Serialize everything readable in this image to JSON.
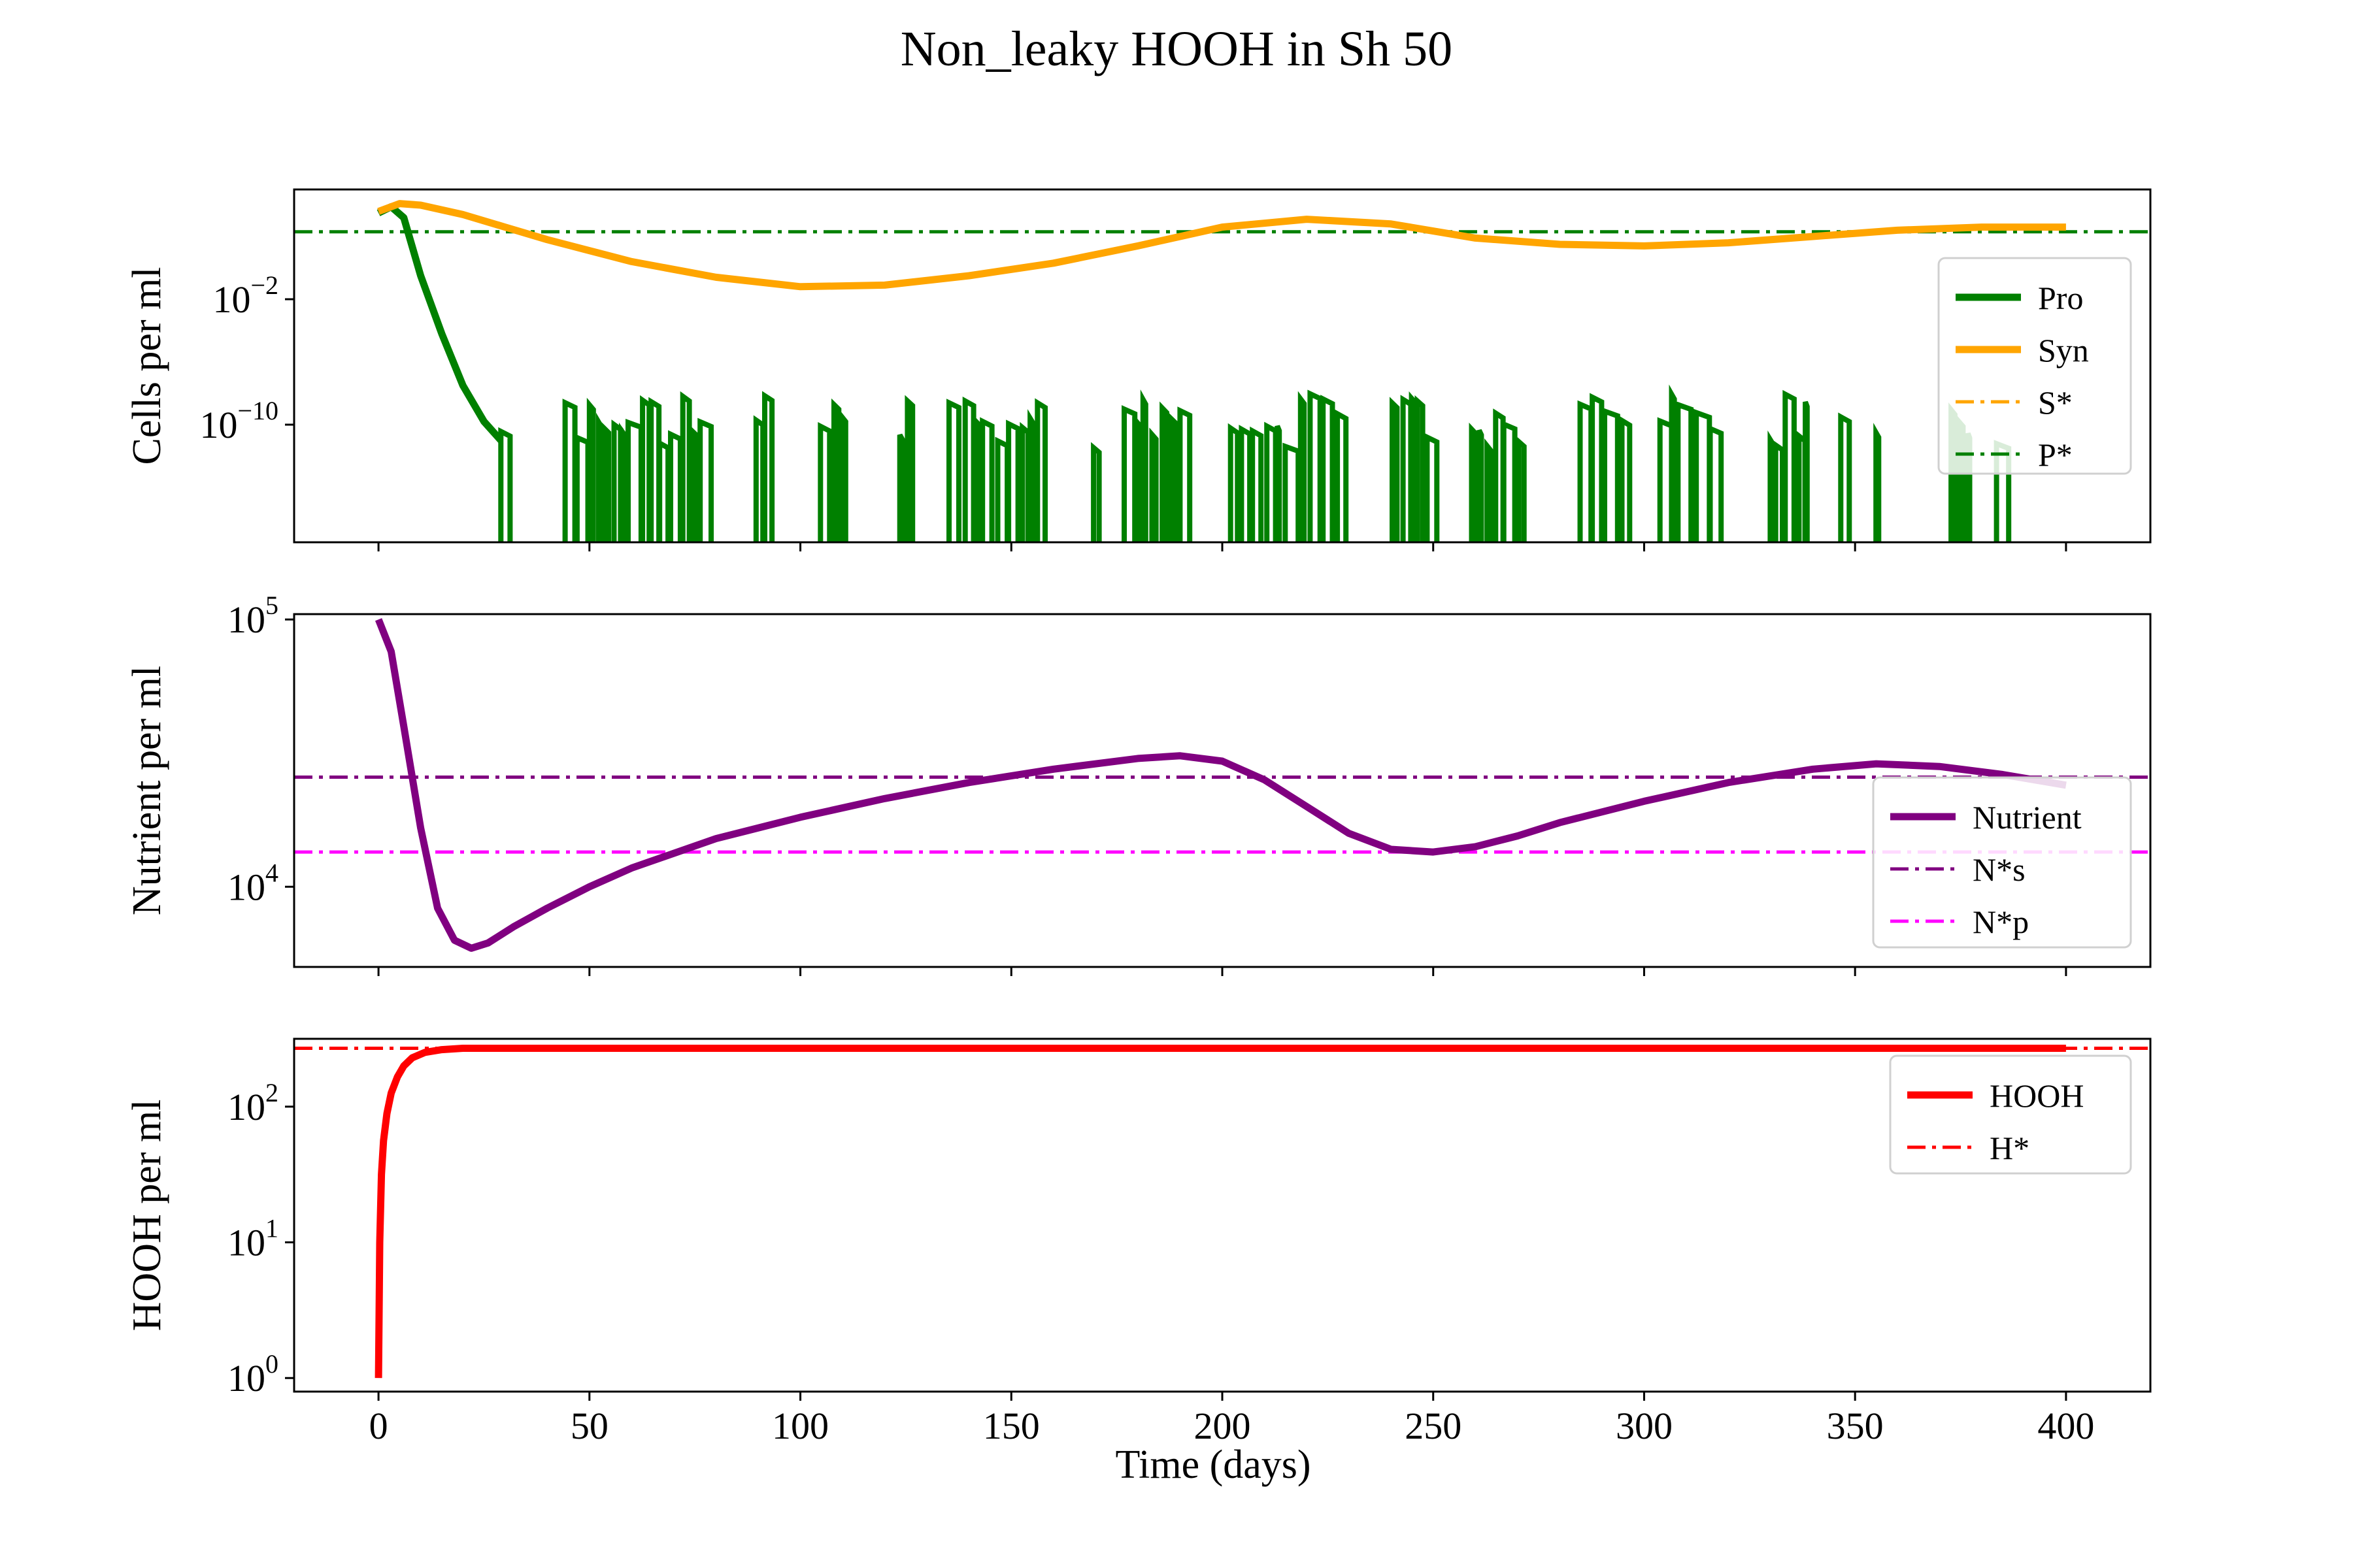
{
  "title": "Non_leaky HOOH in Sh 50",
  "xlabel": "Time (days)",
  "x_ticks": [
    0,
    50,
    100,
    150,
    200,
    250,
    300,
    350,
    400
  ],
  "chart_data": [
    {
      "type": "line",
      "ylabel": "Cells per ml",
      "yscale": "log",
      "xlim": [
        -20,
        420
      ],
      "ylim_log10": [
        -17.5,
        5
      ],
      "y_ticks": [
        {
          "base": "10",
          "exp": "−10",
          "log10": -10
        },
        {
          "base": "10",
          "exp": "−2",
          "log10": -2
        }
      ],
      "legend_position": "right",
      "series": [
        {
          "name": "Pro",
          "color": "#008000",
          "style": "solid",
          "width": 11,
          "x": [
            0,
            3,
            6,
            10,
            15,
            20,
            25,
            29
          ],
          "log10": [
            3.5,
            3.9,
            3.2,
            -0.5,
            -4.2,
            -7.5,
            -9.8,
            -11.0
          ],
          "noise": {
            "x_start": 29,
            "x_end": 395,
            "top_log10_min": -11.5,
            "top_log10_max": -8.0,
            "floor_log10": -17.5
          }
        },
        {
          "name": "Syn",
          "color": "#FFA500",
          "style": "solid",
          "width": 11,
          "x": [
            0,
            5,
            10,
            20,
            30,
            40,
            60,
            80,
            100,
            120,
            140,
            160,
            180,
            200,
            220,
            240,
            260,
            280,
            300,
            320,
            340,
            360,
            380,
            400
          ],
          "log10": [
            3.6,
            4.1,
            4.0,
            3.4,
            2.6,
            1.8,
            0.4,
            -0.6,
            -1.2,
            -1.1,
            -0.5,
            0.3,
            1.4,
            2.6,
            3.1,
            2.8,
            1.9,
            1.5,
            1.4,
            1.6,
            2.0,
            2.4,
            2.6,
            2.6
          ]
        },
        {
          "name": "S*",
          "color": "#FFA500",
          "style": "dashdot",
          "width": 5,
          "hline_log10": 2.3,
          "drawn": false
        },
        {
          "name": "P*",
          "color": "#008000",
          "style": "dashdot",
          "width": 5,
          "hline_log10": 2.3
        }
      ]
    },
    {
      "type": "line",
      "ylabel": "Nutrient per ml",
      "yscale": "log",
      "xlim": [
        -20,
        420
      ],
      "ylim_log10": [
        3.7,
        5.02
      ],
      "y_ticks": [
        {
          "base": "10",
          "exp": "4",
          "log10": 4
        },
        {
          "base": "10",
          "exp": "5",
          "log10": 5
        }
      ],
      "legend_position": "right",
      "series": [
        {
          "name": "Nutrient",
          "color": "#800080",
          "style": "solid",
          "width": 11,
          "x": [
            0,
            3,
            6,
            10,
            14,
            18,
            22,
            26,
            32,
            40,
            50,
            60,
            80,
            100,
            120,
            140,
            160,
            180,
            190,
            200,
            210,
            220,
            230,
            240,
            250,
            260,
            270,
            280,
            300,
            320,
            340,
            355,
            370,
            385,
            400
          ],
          "log10": [
            5.0,
            4.88,
            4.6,
            4.22,
            3.92,
            3.8,
            3.77,
            3.79,
            3.85,
            3.92,
            4.0,
            4.07,
            4.18,
            4.26,
            4.33,
            4.39,
            4.44,
            4.48,
            4.49,
            4.47,
            4.4,
            4.3,
            4.2,
            4.14,
            4.13,
            4.15,
            4.19,
            4.24,
            4.32,
            4.39,
            4.44,
            4.46,
            4.45,
            4.42,
            4.38
          ]
        },
        {
          "name": "N*s",
          "color": "#800080",
          "style": "dashdot",
          "width": 5,
          "hline_log10": 4.41
        },
        {
          "name": "N*p",
          "color": "#FF00FF",
          "style": "dashdot",
          "width": 5,
          "hline_log10": 4.13
        }
      ]
    },
    {
      "type": "line",
      "ylabel": "HOOH per ml",
      "yscale": "log",
      "xlim": [
        -20,
        420
      ],
      "ylim_log10": [
        -0.1,
        2.5
      ],
      "y_ticks": [
        {
          "base": "10",
          "exp": "0",
          "log10": 0
        },
        {
          "base": "10",
          "exp": "1",
          "log10": 1
        },
        {
          "base": "10",
          "exp": "2",
          "log10": 2
        }
      ],
      "legend_position": "upper right",
      "series": [
        {
          "name": "HOOH",
          "color": "#FF0000",
          "style": "solid",
          "width": 11,
          "x": [
            0,
            0.3,
            0.7,
            1.2,
            2,
            3,
            4.5,
            6,
            8,
            11,
            15,
            20,
            30,
            400
          ],
          "log10": [
            0.0,
            1.0,
            1.5,
            1.75,
            1.95,
            2.1,
            2.22,
            2.3,
            2.36,
            2.4,
            2.42,
            2.43,
            2.43,
            2.43
          ]
        },
        {
          "name": "H*",
          "color": "#FF0000",
          "style": "dashdot",
          "width": 5,
          "hline_log10": 2.43
        }
      ]
    }
  ]
}
